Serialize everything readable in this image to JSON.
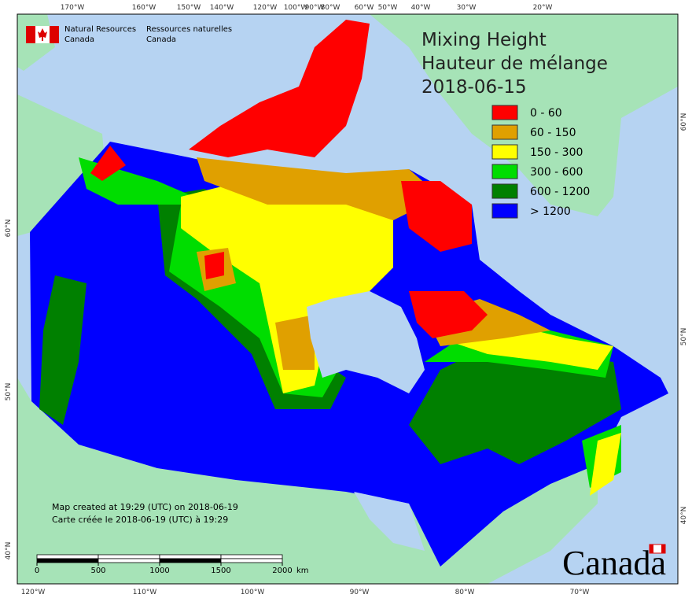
{
  "header": {
    "agency_en": [
      "Natural Resources",
      "Canada"
    ],
    "agency_fr": [
      "Ressources naturelles",
      "Canada"
    ]
  },
  "title": [
    "Mixing Height",
    "Hauteur de mélange",
    "2018-06-15"
  ],
  "legend": [
    {
      "label": "0 - 60",
      "color": "#ff0000"
    },
    {
      "label": "60 - 150",
      "color": "#e0a000"
    },
    {
      "label": "150 - 300",
      "color": "#ffff00"
    },
    {
      "label": "300 - 600",
      "color": "#00dd00"
    },
    {
      "label": "600 - 1200",
      "color": "#008000"
    },
    {
      "label": "> 1200",
      "color": "#0000ff"
    }
  ],
  "graticule": {
    "top": [
      "170°W",
      "160°W",
      "150°W",
      "140°W",
      "120°W",
      "100°W",
      "90°W",
      "80°W",
      "60°W",
      "50°W",
      "40°W",
      "30°W",
      "20°W"
    ],
    "bottom": [
      "120°W",
      "110°W",
      "100°W",
      "90°W",
      "80°W",
      "70°W"
    ],
    "left": [
      "60°N",
      "50°N",
      "40°N"
    ],
    "right": [
      "60°N",
      "50°N",
      "40°N"
    ]
  },
  "notes": [
    "Map created at 19:29 (UTC) on 2018-06-19",
    "Carte créée le 2018-06-19 (UTC) à 19:29"
  ],
  "scale_bar": {
    "ticks": [
      0,
      500,
      1000,
      1500,
      2000
    ],
    "unit": "km"
  },
  "wordmark": "Canada"
}
